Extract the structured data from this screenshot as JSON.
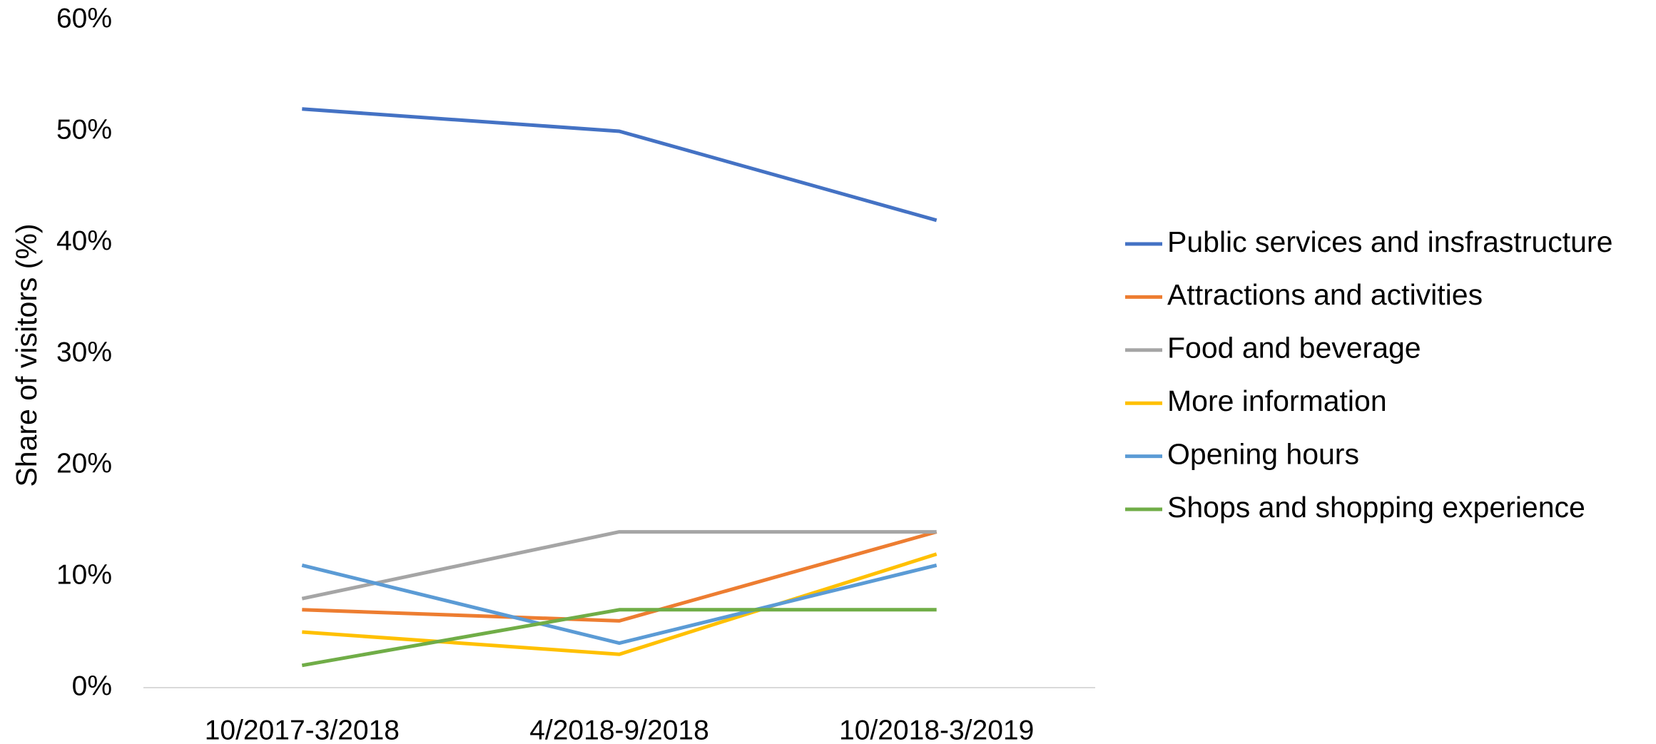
{
  "chart_data": {
    "type": "line",
    "y_label": "Share of visitors (%)",
    "categories": [
      "10/2017-3/2018",
      "4/2018-9/2018",
      "10/2018-3/2019"
    ],
    "series": [
      {
        "name": "Public services and insfrastructure",
        "color": "#4472c4",
        "values": [
          52,
          50,
          42
        ]
      },
      {
        "name": "Attractions and activities",
        "color": "#ed7d31",
        "values": [
          7,
          6,
          14
        ]
      },
      {
        "name": "Food and beverage",
        "color": "#a5a5a5",
        "values": [
          8,
          14,
          14
        ]
      },
      {
        "name": "More information",
        "color": "#ffc000",
        "values": [
          5,
          3,
          12
        ]
      },
      {
        "name": "Opening hours",
        "color": "#5b9bd5",
        "values": [
          11,
          4,
          11
        ]
      },
      {
        "name": "Shops and shopping experience",
        "color": "#70ad47",
        "values": [
          2,
          7,
          7
        ]
      }
    ],
    "ylim": [
      0,
      60
    ],
    "yticks": [
      {
        "value": 0,
        "label": "0%"
      },
      {
        "value": 10,
        "label": "10%"
      },
      {
        "value": 20,
        "label": "20%"
      },
      {
        "value": 30,
        "label": "30%"
      },
      {
        "value": 40,
        "label": "40%"
      },
      {
        "value": 50,
        "label": "50%"
      },
      {
        "value": 60,
        "label": "60%"
      }
    ],
    "grid": false,
    "legend": "right"
  }
}
